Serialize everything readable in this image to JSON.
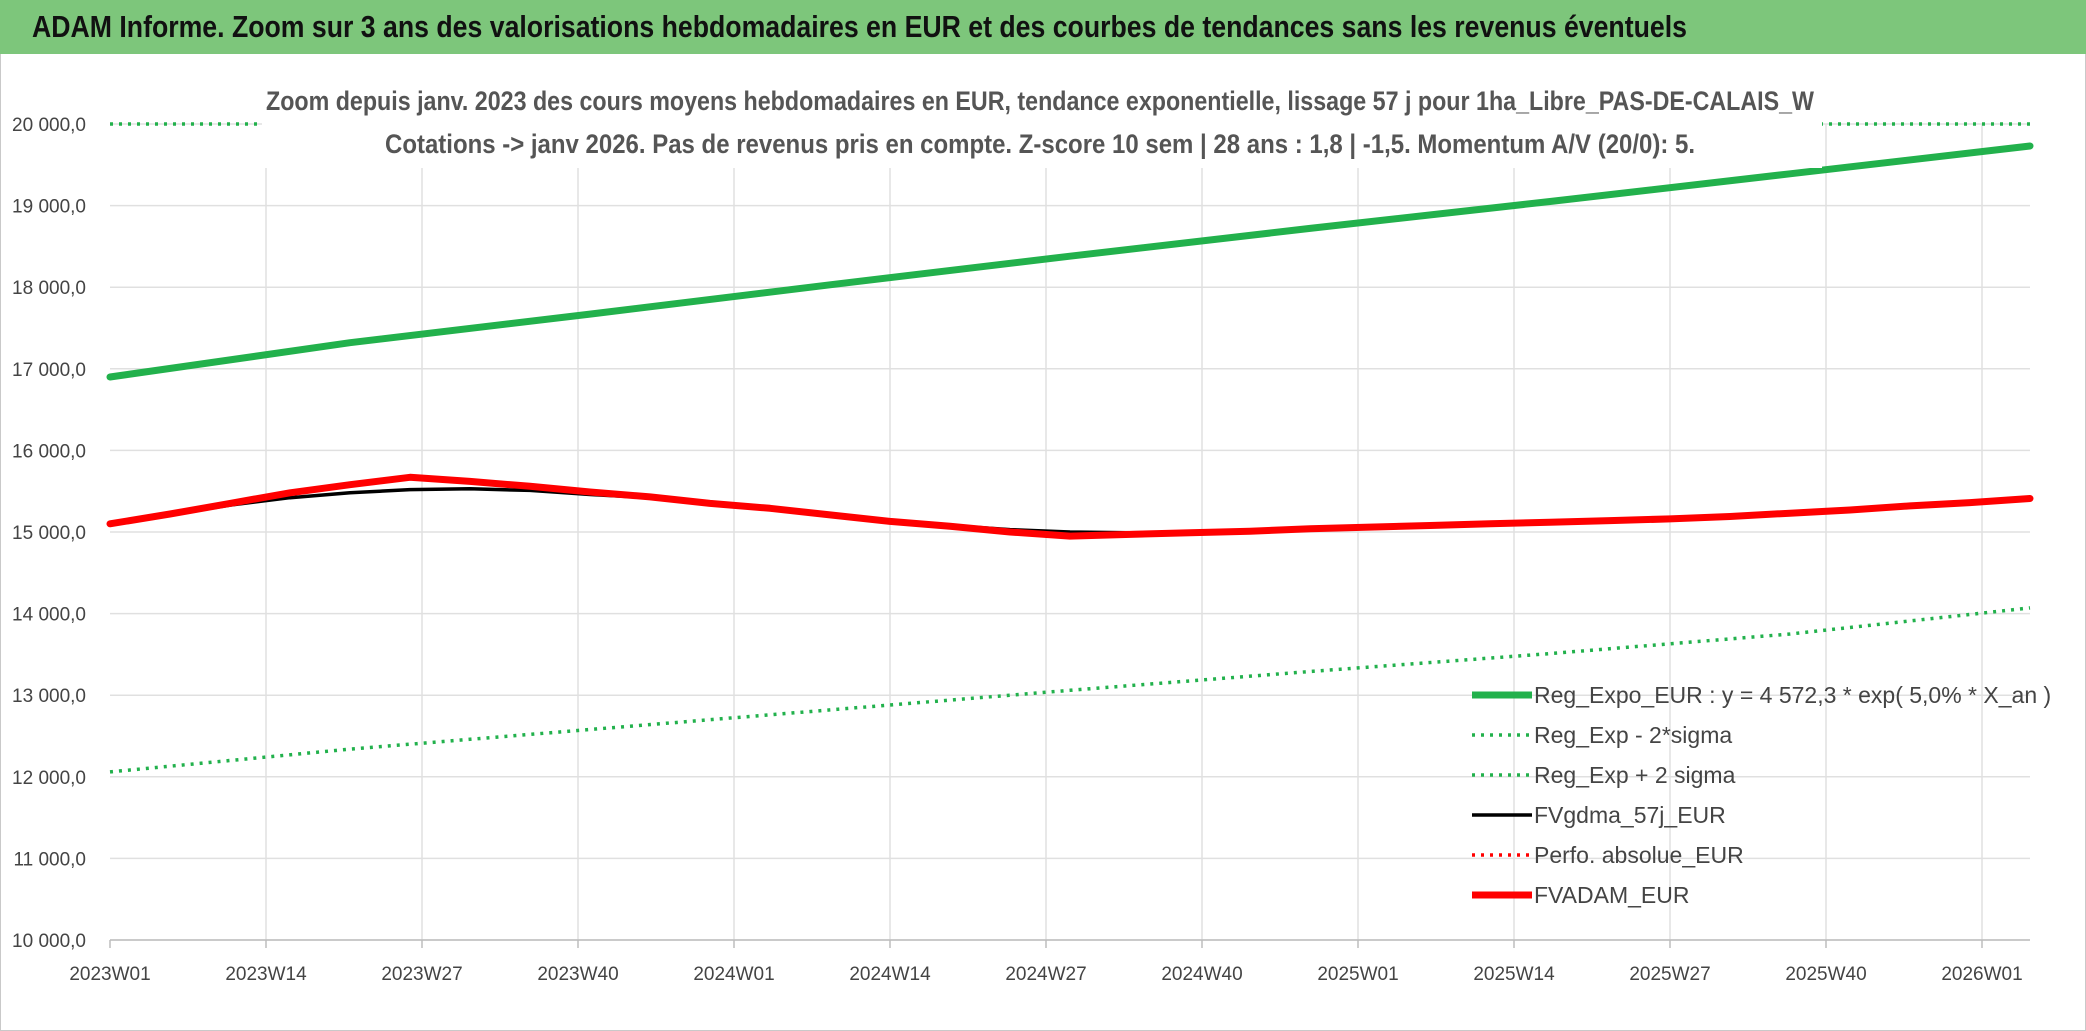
{
  "header": {
    "title": "ADAM Informe. Zoom sur 3 ans des valorisations hebdomadaires en EUR et des courbes de tendances sans les revenus éventuels"
  },
  "chart_data": {
    "type": "line",
    "title_line1": "Zoom depuis janv. 2023 des cours moyens hebdomadaires en EUR, tendance exponentielle, lissage 57 j pour 1ha_Libre_PAS-DE-CALAIS_W",
    "title_line2": "Cotations -> janv 2026. Pas de revenus pris en compte. Z-score 10 sem | 28 ans : 1,8 | -1,5. Momentum A/V (20/0): 5.",
    "ylim": [
      10000,
      20000
    ],
    "yticks": [
      10000,
      11000,
      12000,
      13000,
      14000,
      15000,
      16000,
      17000,
      18000,
      19000,
      20000
    ],
    "ytick_labels": [
      "10 000,0",
      "11 000,0",
      "12 000,0",
      "13 000,0",
      "14 000,0",
      "15 000,0",
      "16 000,0",
      "17 000,0",
      "18 000,0",
      "19 000,0",
      "20 000,0"
    ],
    "x_labels": [
      "2023W01",
      "2023W14",
      "2023W27",
      "2023W40",
      "2024W01",
      "2024W14",
      "2024W27",
      "2024W40",
      "2025W01",
      "2025W14",
      "2025W27",
      "2025W40",
      "2026W01"
    ],
    "x_label_weeks": [
      0,
      13,
      26,
      39,
      52,
      65,
      78,
      91,
      104,
      117,
      130,
      143,
      156
    ],
    "x_range": [
      0,
      160
    ],
    "grid": true,
    "legend_position": "bottom-right",
    "series": [
      {
        "name": "Reg_Expo_EUR : y = 4 572,3 * exp( 5,0% *  X_an )",
        "color": "#22b14c",
        "style": "solid-thick",
        "x": [
          0,
          20,
          40,
          60,
          80,
          100,
          120,
          140,
          160
        ],
        "values": [
          16900,
          17320,
          17670,
          18030,
          18380,
          18720,
          19050,
          19390,
          19730
        ]
      },
      {
        "name": "Reg_Exp - 2*sigma",
        "color": "#22b14c",
        "style": "dotted",
        "x": [
          0,
          20,
          40,
          60,
          80,
          100,
          120,
          140,
          160
        ],
        "values": [
          12060,
          12340,
          12580,
          12820,
          13060,
          13290,
          13510,
          13750,
          14070
        ]
      },
      {
        "name": "Reg_Exp + 2 sigma",
        "color": "#22b14c",
        "style": "dotted",
        "x": [
          0,
          160
        ],
        "values": [
          20000,
          20000
        ]
      },
      {
        "name": "FVgdma_57j_EUR",
        "color": "#000000",
        "style": "solid",
        "x": [
          0,
          5,
          10,
          15,
          20,
          25,
          30,
          35,
          40,
          45,
          50,
          55,
          60,
          65,
          70,
          75,
          80,
          85,
          90,
          95,
          100,
          105,
          110,
          115,
          120,
          125,
          130,
          135,
          140,
          145,
          150,
          155,
          160
        ],
        "values": [
          15100,
          15210,
          15330,
          15420,
          15480,
          15520,
          15530,
          15510,
          15460,
          15420,
          15350,
          15290,
          15220,
          15140,
          15080,
          15030,
          15000,
          14990,
          15000,
          15010,
          15040,
          15060,
          15080,
          15100,
          15120,
          15140,
          15160,
          15190,
          15230,
          15270,
          15320,
          15360,
          15410
        ]
      },
      {
        "name": "Perfo. absolue_EUR",
        "color": "#ff0000",
        "style": "dotted",
        "x": [],
        "values": []
      },
      {
        "name": "FVADAM_EUR",
        "color": "#ff0000",
        "style": "solid-thick",
        "x": [
          0,
          5,
          10,
          15,
          20,
          25,
          30,
          35,
          40,
          45,
          50,
          55,
          60,
          65,
          70,
          75,
          80,
          85,
          90,
          95,
          100,
          105,
          110,
          115,
          120,
          125,
          130,
          135,
          140,
          145,
          150,
          155,
          160
        ],
        "values": [
          15100,
          15220,
          15350,
          15480,
          15580,
          15670,
          15620,
          15560,
          15490,
          15430,
          15350,
          15290,
          15210,
          15130,
          15070,
          15000,
          14950,
          14970,
          14990,
          15010,
          15040,
          15060,
          15080,
          15100,
          15120,
          15140,
          15160,
          15190,
          15230,
          15270,
          15320,
          15360,
          15410
        ]
      }
    ]
  }
}
